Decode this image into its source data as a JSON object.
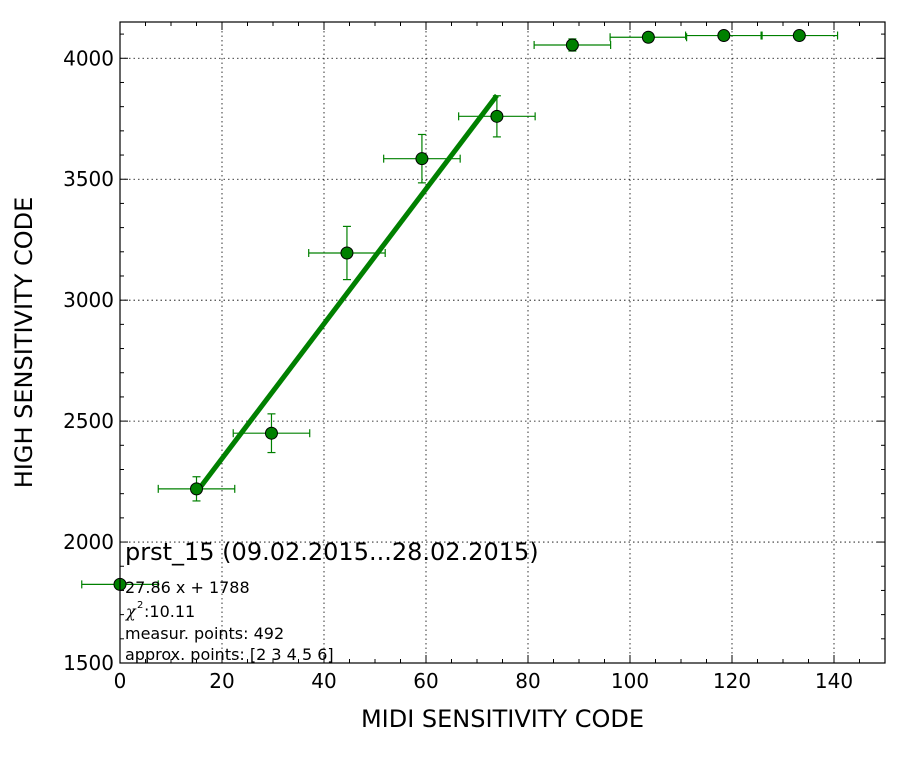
{
  "chart_data": {
    "type": "scatter",
    "xlabel": "MIDI SENSITIVITY CODE",
    "ylabel": "HIGH SENSITIVITY CODE",
    "xlim": [
      0,
      150
    ],
    "ylim": [
      1500,
      4150
    ],
    "xticks": [
      "0",
      "20",
      "40",
      "60",
      "80",
      "100",
      "120",
      "140"
    ],
    "yticks": [
      "1500",
      "2000",
      "2500",
      "3000",
      "3500",
      "4000"
    ],
    "grid": true,
    "colors": {
      "series": "#008000",
      "marker_face": "#008000",
      "marker_edge": "#000000"
    },
    "series": [
      {
        "points": [
          {
            "x": 0.0,
            "y": 1825,
            "xerr": 7.5,
            "yerr": 0
          },
          {
            "x": 15.0,
            "y": 2220,
            "xerr": 7.5,
            "yerr": 50
          },
          {
            "x": 29.7,
            "y": 2450,
            "xerr": 7.5,
            "yerr": 80
          },
          {
            "x": 44.5,
            "y": 3195,
            "xerr": 7.5,
            "yerr": 110
          },
          {
            "x": 59.2,
            "y": 3585,
            "xerr": 7.5,
            "yerr": 100
          },
          {
            "x": 73.9,
            "y": 3760,
            "xerr": 7.5,
            "yerr": 85
          },
          {
            "x": 88.7,
            "y": 4055,
            "xerr": 7.5,
            "yerr": 25
          },
          {
            "x": 103.6,
            "y": 4087,
            "xerr": 7.5,
            "yerr": 0
          },
          {
            "x": 118.4,
            "y": 4094,
            "xerr": 7.5,
            "yerr": 0
          },
          {
            "x": 133.2,
            "y": 4094,
            "xerr": 7.5,
            "yerr": 0
          }
        ]
      }
    ],
    "fit": {
      "slope": 27.86,
      "intercept": 1788,
      "x_from": 15.0,
      "x_to": 73.9
    },
    "annotations": {
      "title": "prst_15 (09.02.2015...28.02.2015)",
      "fit_label": "27.86 x + 1788",
      "chi2_symbol": "χ",
      "chi2_value": " :10.11",
      "measur": "measur. points: 492",
      "approx": "approx. points: [2 3 4 5 6]"
    }
  }
}
